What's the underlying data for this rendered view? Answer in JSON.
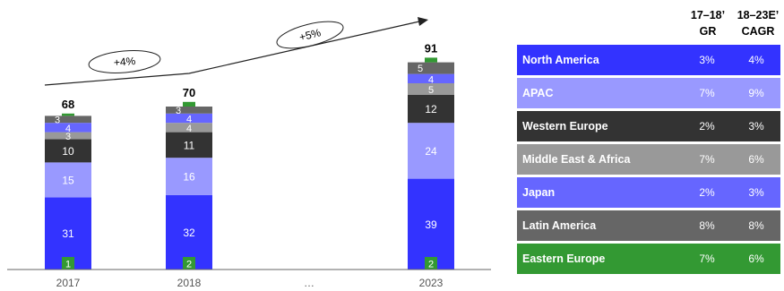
{
  "chart_data": {
    "type": "bar",
    "stacked": true,
    "categories": [
      "2017",
      "2018",
      "…",
      "2023"
    ],
    "totals": [
      68,
      70,
      null,
      91
    ],
    "series": [
      {
        "name": "North America",
        "color": "#3333ff",
        "label_color": "#ffffff",
        "values": [
          31,
          32,
          null,
          39
        ]
      },
      {
        "name": "APAC",
        "color": "#9999ff",
        "label_color": "#ffffff",
        "values": [
          15,
          16,
          null,
          24
        ]
      },
      {
        "name": "Western Europe",
        "color": "#333333",
        "label_color": "#ffffff",
        "values": [
          10,
          11,
          null,
          12
        ]
      },
      {
        "name": "Middle East & Africa",
        "color": "#999999",
        "label_color": "#ffffff",
        "values": [
          3,
          4,
          null,
          5
        ]
      },
      {
        "name": "Japan",
        "color": "#6666ff",
        "label_color": "#ffffff",
        "values": [
          4,
          4,
          null,
          4
        ]
      },
      {
        "name": "Latin America",
        "color": "#666666",
        "label_color": "#ffffff",
        "values": [
          3,
          3,
          null,
          5
        ]
      },
      {
        "name": "Eastern Europe",
        "color": "#339933",
        "label_color": "#ffffff",
        "values": [
          1,
          2,
          null,
          2
        ]
      }
    ],
    "annotations": [
      {
        "text": "+4%",
        "from": "2017",
        "to": "2018"
      },
      {
        "text": "+5%",
        "from": "2018",
        "to": "2023"
      }
    ]
  },
  "growth_table": {
    "header_gr": [
      "17–18’",
      "GR"
    ],
    "header_cagr": [
      "18–23E’",
      "CAGR"
    ],
    "rows": [
      {
        "region": "North America",
        "gr": "3%",
        "cagr": "4%",
        "bg": "#3333ff",
        "fg": "#ffffff"
      },
      {
        "region": "APAC",
        "gr": "7%",
        "cagr": "9%",
        "bg": "#9999ff",
        "fg": "#ffffff"
      },
      {
        "region": "Western Europe",
        "gr": "2%",
        "cagr": "3%",
        "bg": "#333333",
        "fg": "#ffffff"
      },
      {
        "region": "Middle East & Africa",
        "gr": "7%",
        "cagr": "6%",
        "bg": "#999999",
        "fg": "#ffffff"
      },
      {
        "region": "Japan",
        "gr": "2%",
        "cagr": "3%",
        "bg": "#6666ff",
        "fg": "#ffffff"
      },
      {
        "region": "Latin America",
        "gr": "8%",
        "cagr": "8%",
        "bg": "#666666",
        "fg": "#ffffff"
      },
      {
        "region": "Eastern Europe",
        "gr": "7%",
        "cagr": "6%",
        "bg": "#339933",
        "fg": "#ffffff"
      }
    ]
  }
}
